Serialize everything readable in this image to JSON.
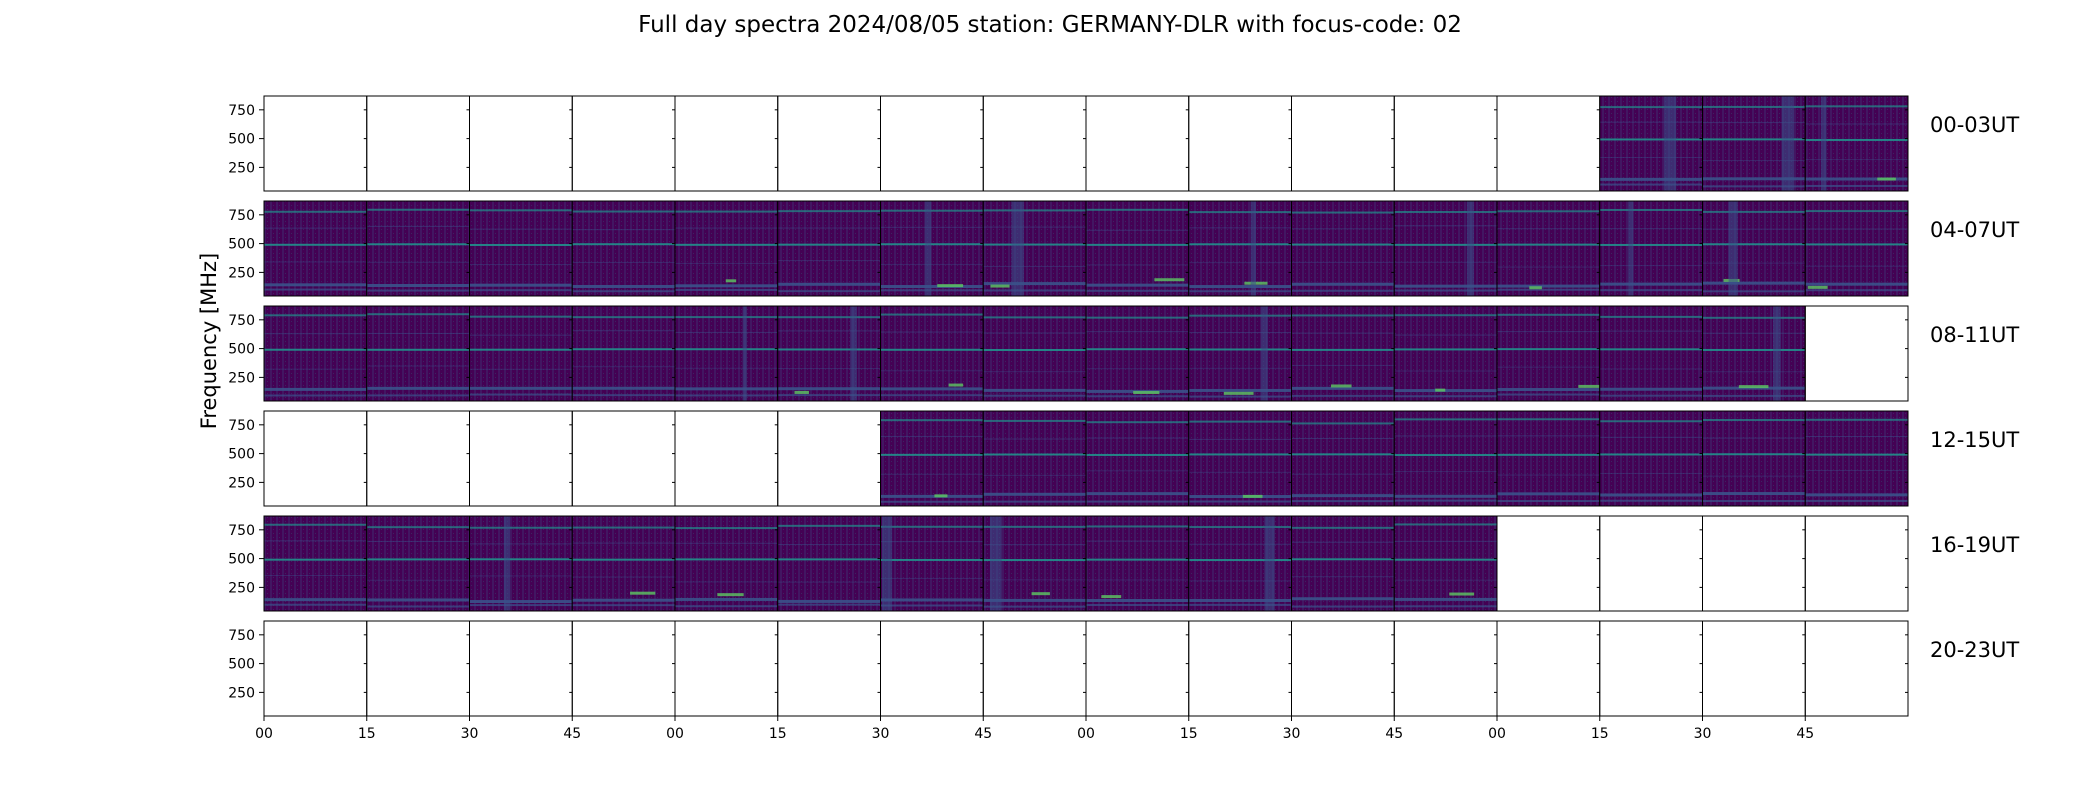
{
  "chart_data": {
    "type": "heatmap",
    "title": "Full day spectra 2024/08/05 station: GERMANY-DLR with focus-code: 02",
    "ylabel": "Frequency [MHz]",
    "xlabel": "",
    "y_ticks": [
      250,
      500,
      750
    ],
    "ylim": [
      45,
      870
    ],
    "x_tick_labels": [
      "00",
      "15",
      "30",
      "45",
      "00",
      "15",
      "30",
      "45",
      "00",
      "15",
      "30",
      "45",
      "00",
      "15",
      "30",
      "45"
    ],
    "row_labels": [
      "00-03UT",
      "04-07UT",
      "08-11UT",
      "12-15UT",
      "16-19UT",
      "20-23UT"
    ],
    "columns_per_row": 16,
    "panel_minutes": 15,
    "colormap": [
      "#440154",
      "#3b528b",
      "#21918c",
      "#5ec962",
      "#fde725"
    ],
    "data_present": [
      [
        0,
        0,
        0,
        0,
        0,
        0,
        0,
        0,
        0,
        0,
        0,
        0,
        0,
        1,
        1,
        1
      ],
      [
        1,
        1,
        1,
        1,
        1,
        1,
        1,
        1,
        1,
        1,
        1,
        1,
        1,
        1,
        1,
        1
      ],
      [
        1,
        1,
        1,
        1,
        1,
        1,
        1,
        1,
        1,
        1,
        1,
        1,
        1,
        1,
        1,
        0
      ],
      [
        0,
        0,
        0,
        0,
        0,
        0,
        1,
        1,
        1,
        1,
        1,
        1,
        1,
        1,
        1,
        1
      ],
      [
        1,
        1,
        1,
        1,
        1,
        1,
        1,
        1,
        1,
        1,
        1,
        1,
        0,
        0,
        0,
        0
      ],
      [
        0,
        0,
        0,
        0,
        0,
        0,
        0,
        0,
        0,
        0,
        0,
        0,
        0,
        0,
        0,
        0
      ]
    ],
    "grid": false
  }
}
